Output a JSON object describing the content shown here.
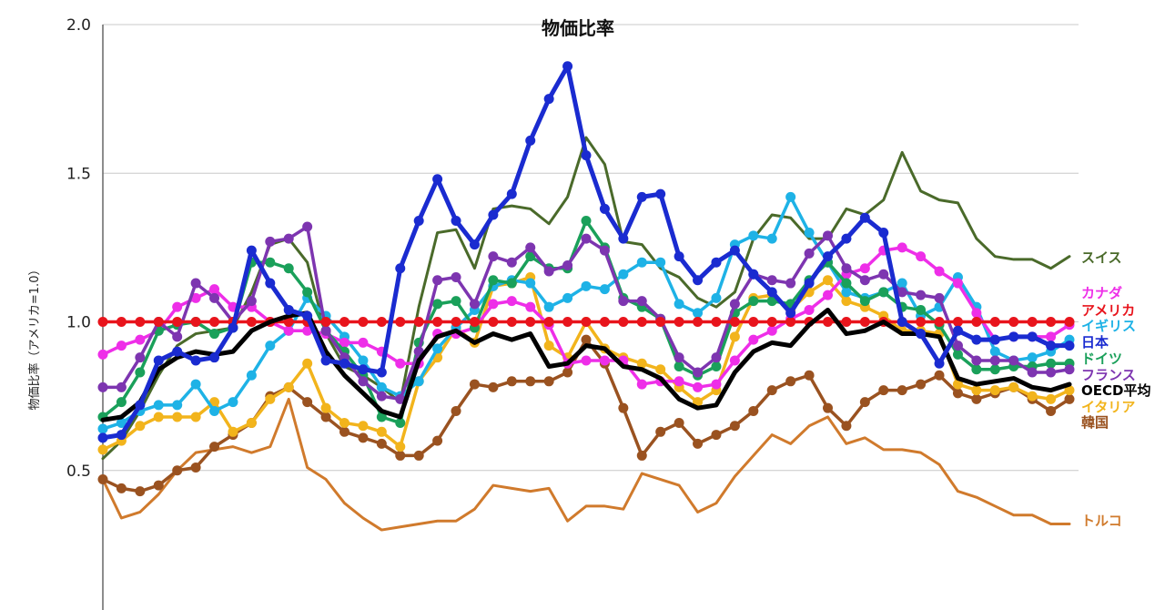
{
  "chart_data": {
    "type": "line",
    "title": "物価比率",
    "ylabel": "物価比率（アメリカ=1.0）",
    "xlabel": "",
    "ylim": [
      0.0,
      2.0
    ],
    "yticks": [
      0.5,
      1.0,
      1.5,
      2.0
    ],
    "tick_labels": [
      "0.5",
      "1.0",
      "1.5",
      "2.0"
    ],
    "grid": true,
    "legend": "right, labels at line ends",
    "x": [
      1,
      2,
      3,
      4,
      5,
      6,
      7,
      8,
      9,
      10,
      11,
      12,
      13,
      14,
      15,
      16,
      17,
      18,
      19,
      20,
      21,
      22,
      23,
      24,
      25,
      26,
      27,
      28,
      29,
      30,
      31,
      32,
      33,
      34,
      35,
      36,
      37,
      38,
      39,
      40,
      41,
      42,
      43,
      44,
      45,
      46,
      47,
      48,
      49,
      50,
      51,
      52,
      53
    ],
    "series": [
      {
        "name": "スイス",
        "color": "#4a6a2a",
        "markers": false,
        "values": [
          0.54,
          0.6,
          0.7,
          0.82,
          0.92,
          0.96,
          0.97,
          0.98,
          1.1,
          1.26,
          1.28,
          1.2,
          0.96,
          0.85,
          0.82,
          0.78,
          0.73,
          1.05,
          1.3,
          1.31,
          1.18,
          1.38,
          1.39,
          1.38,
          1.33,
          1.42,
          1.62,
          1.53,
          1.27,
          1.26,
          1.18,
          1.15,
          1.08,
          1.05,
          1.1,
          1.28,
          1.36,
          1.35,
          1.28,
          1.28,
          1.38,
          1.36,
          1.41,
          1.57,
          1.44,
          1.41,
          1.4,
          1.28,
          1.22,
          1.21,
          1.21,
          1.18,
          1.22
        ]
      },
      {
        "name": "アメリカ",
        "color": "#e8141c",
        "markers": true,
        "values": [
          1.0,
          1.0,
          1.0,
          1.0,
          1.0,
          1.0,
          1.0,
          1.0,
          1.0,
          1.0,
          1.0,
          1.0,
          1.0,
          1.0,
          1.0,
          1.0,
          1.0,
          1.0,
          1.0,
          1.0,
          1.0,
          1.0,
          1.0,
          1.0,
          1.0,
          1.0,
          1.0,
          1.0,
          1.0,
          1.0,
          1.0,
          1.0,
          1.0,
          1.0,
          1.0,
          1.0,
          1.0,
          1.0,
          1.0,
          1.0,
          1.0,
          1.0,
          1.0,
          1.0,
          1.0,
          1.0,
          1.0,
          1.0,
          1.0,
          1.0,
          1.0,
          1.0,
          1.0
        ]
      },
      {
        "name": "トルコ",
        "color": "#d07a2c",
        "markers": false,
        "values": [
          0.47,
          0.34,
          0.36,
          0.42,
          0.5,
          0.56,
          0.57,
          0.58,
          0.56,
          0.58,
          0.74,
          0.51,
          0.47,
          0.39,
          0.34,
          0.3,
          0.31,
          0.32,
          0.33,
          0.33,
          0.37,
          0.45,
          0.44,
          0.43,
          0.44,
          0.33,
          0.38,
          0.38,
          0.37,
          0.49,
          0.47,
          0.45,
          0.36,
          0.39,
          0.48,
          0.55,
          0.62,
          0.59,
          0.65,
          0.68,
          0.59,
          0.61,
          0.57,
          0.57,
          0.56,
          0.52,
          0.43,
          0.41,
          0.38,
          0.35,
          0.35,
          0.32,
          0.32
        ]
      },
      {
        "name": "カナダ",
        "color": "#ee2ee8",
        "markers": true,
        "values": [
          0.89,
          0.92,
          0.94,
          0.97,
          1.05,
          1.08,
          1.11,
          1.05,
          1.05,
          1.0,
          0.97,
          0.97,
          0.96,
          0.93,
          0.93,
          0.9,
          0.86,
          0.86,
          0.96,
          0.96,
          0.98,
          1.06,
          1.07,
          1.05,
          0.99,
          0.86,
          0.87,
          0.87,
          0.87,
          0.79,
          0.8,
          0.8,
          0.78,
          0.79,
          0.87,
          0.94,
          0.97,
          1.01,
          1.04,
          1.09,
          1.16,
          1.18,
          1.24,
          1.25,
          1.22,
          1.17,
          1.13,
          1.03,
          0.94,
          0.95,
          0.95,
          0.95,
          0.99
        ]
      },
      {
        "name": "イギリス",
        "color": "#1eb2e6",
        "markers": true,
        "values": [
          0.64,
          0.66,
          0.7,
          0.72,
          0.72,
          0.79,
          0.7,
          0.73,
          0.82,
          0.92,
          0.97,
          1.08,
          1.02,
          0.95,
          0.87,
          0.78,
          0.75,
          0.8,
          0.91,
          0.98,
          1.04,
          1.12,
          1.14,
          1.13,
          1.05,
          1.08,
          1.12,
          1.11,
          1.16,
          1.2,
          1.2,
          1.06,
          1.03,
          1.08,
          1.26,
          1.29,
          1.28,
          1.42,
          1.3,
          1.2,
          1.1,
          1.08,
          1.1,
          1.13,
          1.02,
          1.05,
          1.15,
          1.05,
          0.9,
          0.87,
          0.88,
          0.9,
          0.94
        ]
      },
      {
        "name": "日本",
        "color": "#1a2bd0",
        "markers": true,
        "values": [
          0.61,
          0.62,
          0.72,
          0.87,
          0.9,
          0.87,
          0.88,
          0.98,
          1.24,
          1.13,
          1.04,
          1.02,
          0.87,
          0.86,
          0.84,
          0.83,
          1.18,
          1.34,
          1.48,
          1.34,
          1.26,
          1.36,
          1.43,
          1.61,
          1.75,
          1.86,
          1.56,
          1.38,
          1.28,
          1.42,
          1.43,
          1.22,
          1.14,
          1.2,
          1.24,
          1.16,
          1.1,
          1.03,
          1.13,
          1.22,
          1.28,
          1.35,
          1.3,
          1.0,
          0.96,
          0.86,
          0.97,
          0.94,
          0.94,
          0.95,
          0.95,
          0.92,
          0.92
        ]
      },
      {
        "name": "ドイツ",
        "color": "#1aa05a",
        "markers": true,
        "values": [
          0.68,
          0.73,
          0.83,
          0.97,
          0.99,
          1.0,
          0.96,
          0.98,
          1.2,
          1.2,
          1.18,
          1.1,
          0.97,
          0.9,
          0.82,
          0.68,
          0.66,
          0.93,
          1.06,
          1.07,
          0.98,
          1.14,
          1.13,
          1.22,
          1.18,
          1.18,
          1.34,
          1.25,
          1.08,
          1.05,
          1.01,
          0.85,
          0.82,
          0.85,
          1.03,
          1.07,
          1.07,
          1.06,
          1.14,
          1.2,
          1.13,
          1.07,
          1.1,
          1.05,
          1.04,
          0.99,
          0.89,
          0.84,
          0.84,
          0.85,
          0.85,
          0.86,
          0.86
        ]
      },
      {
        "name": "フランス",
        "color": "#7d35b0",
        "markers": true,
        "values": [
          0.78,
          0.78,
          0.88,
          1.0,
          0.95,
          1.13,
          1.08,
          1.0,
          1.07,
          1.27,
          1.28,
          1.32,
          0.97,
          0.88,
          0.8,
          0.75,
          0.74,
          0.9,
          1.14,
          1.15,
          1.06,
          1.22,
          1.2,
          1.25,
          1.17,
          1.19,
          1.28,
          1.24,
          1.07,
          1.07,
          1.01,
          0.88,
          0.83,
          0.88,
          1.06,
          1.16,
          1.14,
          1.13,
          1.23,
          1.29,
          1.18,
          1.14,
          1.16,
          1.1,
          1.09,
          1.08,
          0.92,
          0.87,
          0.87,
          0.87,
          0.83,
          0.83,
          0.84
        ]
      },
      {
        "name": "OECD平均",
        "color": "#000000",
        "markers": false,
        "values": [
          0.67,
          0.68,
          0.73,
          0.84,
          0.88,
          0.9,
          0.89,
          0.9,
          0.97,
          1.0,
          1.02,
          1.03,
          0.9,
          0.82,
          0.76,
          0.7,
          0.68,
          0.87,
          0.95,
          0.97,
          0.93,
          0.96,
          0.94,
          0.96,
          0.85,
          0.86,
          0.92,
          0.91,
          0.85,
          0.84,
          0.81,
          0.74,
          0.71,
          0.72,
          0.83,
          0.9,
          0.93,
          0.92,
          0.99,
          1.04,
          0.96,
          0.97,
          1.0,
          0.96,
          0.96,
          0.95,
          0.81,
          0.79,
          0.8,
          0.81,
          0.78,
          0.77,
          0.79
        ]
      },
      {
        "name": "イタリア",
        "color": "#f2b41c",
        "markers": true,
        "values": [
          0.57,
          0.6,
          0.65,
          0.68,
          0.68,
          0.68,
          0.73,
          0.63,
          0.66,
          0.74,
          0.78,
          0.86,
          0.71,
          0.66,
          0.65,
          0.63,
          0.58,
          0.8,
          0.88,
          0.98,
          0.93,
          1.12,
          1.13,
          1.15,
          0.92,
          0.88,
          1.0,
          0.91,
          0.88,
          0.86,
          0.84,
          0.78,
          0.73,
          0.77,
          0.95,
          1.08,
          1.09,
          1.04,
          1.1,
          1.14,
          1.07,
          1.05,
          1.02,
          0.97,
          0.97,
          0.96,
          0.79,
          0.77,
          0.77,
          0.78,
          0.75,
          0.74,
          0.77
        ]
      },
      {
        "name": "韓国",
        "color": "#9a5220",
        "markers": true,
        "values": [
          0.47,
          0.44,
          0.43,
          0.45,
          0.5,
          0.51,
          0.58,
          0.62,
          0.66,
          0.75,
          0.78,
          0.73,
          0.68,
          0.63,
          0.61,
          0.59,
          0.55,
          0.55,
          0.6,
          0.7,
          0.79,
          0.78,
          0.8,
          0.8,
          0.8,
          0.83,
          0.94,
          0.86,
          0.71,
          0.55,
          0.63,
          0.66,
          0.59,
          0.62,
          0.65,
          0.7,
          0.77,
          0.8,
          0.82,
          0.71,
          0.65,
          0.73,
          0.77,
          0.77,
          0.79,
          0.82,
          0.76,
          0.74,
          0.76,
          0.78,
          0.74,
          0.7,
          0.74
        ]
      }
    ]
  }
}
